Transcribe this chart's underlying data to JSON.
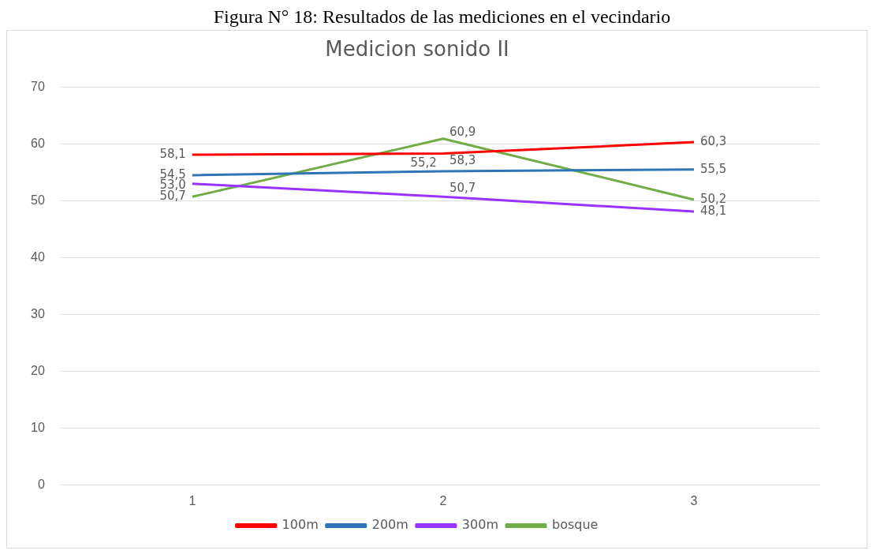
{
  "chart_data": {
    "type": "line",
    "title": "Medicion sonido II",
    "annotations": [
      "Figura N° 18: Resultados de las mediciones en el vecindario"
    ],
    "categories": [
      "1",
      "2",
      "3"
    ],
    "series": [
      {
        "name": "100m",
        "color": "#ff0000",
        "values": [
          58.1,
          58.3,
          60.3
        ],
        "value_labels": [
          "58,1",
          "58,3",
          "60,3"
        ]
      },
      {
        "name": "200m",
        "color": "#2e75b6",
        "values": [
          54.5,
          55.2,
          55.5
        ],
        "value_labels": [
          "54,5",
          "55,2",
          "55,5"
        ]
      },
      {
        "name": "300m",
        "color": "#9933ff",
        "values": [
          53.0,
          50.7,
          48.1
        ],
        "value_labels": [
          "53,0",
          "50,7",
          "48,1"
        ]
      },
      {
        "name": "bosque",
        "color": "#70ad47",
        "values": [
          50.7,
          60.9,
          50.2
        ],
        "value_labels": [
          "50,7",
          "60,9",
          "50,2"
        ]
      }
    ],
    "ylim": [
      0,
      70
    ],
    "yticks": [
      0,
      10,
      20,
      30,
      40,
      50,
      60,
      70
    ],
    "grid": "y",
    "legend": "bottom",
    "marker": "none"
  }
}
